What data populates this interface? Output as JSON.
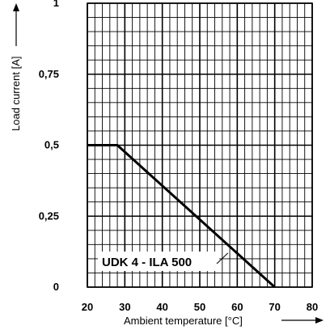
{
  "chart_data": {
    "type": "line",
    "xlabel": "Ambient temperature [°C]",
    "ylabel": "Load current [A]",
    "xlim": [
      20,
      80
    ],
    "ylim": [
      0,
      1
    ],
    "x_ticks": [
      20,
      30,
      40,
      50,
      60,
      70,
      80
    ],
    "x_tick_labels": [
      "20",
      "30",
      "40",
      "50",
      "60",
      "70",
      "80"
    ],
    "y_ticks": [
      0,
      0.25,
      0.5,
      0.75,
      1
    ],
    "y_tick_labels": [
      "0",
      "0,25",
      "0,5",
      "0,75",
      "1"
    ],
    "grid": true,
    "series": [
      {
        "x": [
          20,
          28,
          70
        ],
        "y": [
          0.5,
          0.5,
          0
        ]
      }
    ],
    "annotations": [
      {
        "text": "UDK 4 - ILA 500",
        "points_to": {
          "x": 57.5,
          "y": 0.12
        }
      }
    ]
  }
}
